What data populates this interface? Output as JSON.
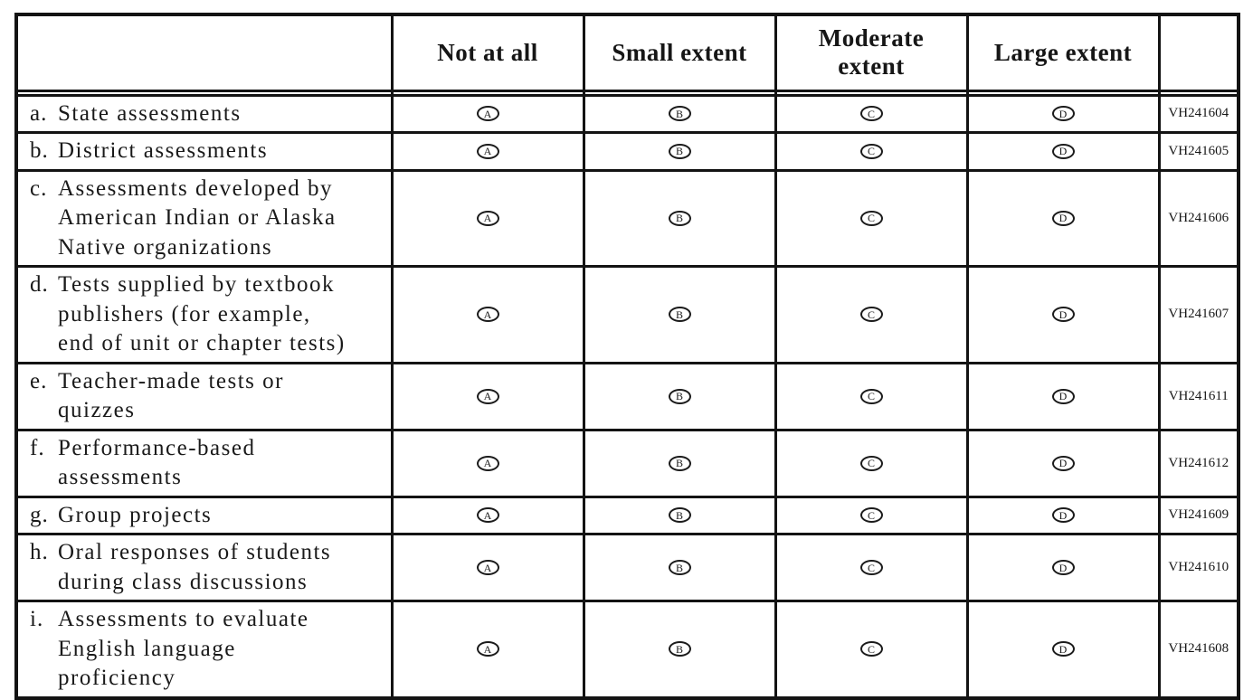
{
  "table": {
    "headers": [
      "",
      "Not at all",
      "Small extent",
      "Moderate extent",
      "Large extent",
      ""
    ],
    "options": [
      "A",
      "B",
      "C",
      "D"
    ],
    "rows": [
      {
        "letter": "a.",
        "label": "State assessments",
        "code": "VH241604"
      },
      {
        "letter": "b.",
        "label": "District assessments",
        "code": "VH241605"
      },
      {
        "letter": "c.",
        "label": "Assessments developed by American Indian or Alaska Native organizations",
        "code": "VH241606"
      },
      {
        "letter": "d.",
        "label": "Tests supplied by textbook publishers (for example, end of unit or chapter tests)",
        "code": "VH241607"
      },
      {
        "letter": "e.",
        "label": "Teacher-made tests or quizzes",
        "code": "VH241611"
      },
      {
        "letter": "f.",
        "label": "Performance-based assessments",
        "code": "VH241612"
      },
      {
        "letter": "g.",
        "label": "Group projects",
        "code": "VH241609"
      },
      {
        "letter": "h.",
        "label": "Oral responses of students during class discussions",
        "code": "VH241610"
      },
      {
        "letter": "i.",
        "label": "Assessments to evaluate English language proficiency",
        "code": "VH241608"
      }
    ],
    "colors": {
      "border": "#131313",
      "text": "#1a1a1a",
      "background": "#ffffff"
    }
  }
}
